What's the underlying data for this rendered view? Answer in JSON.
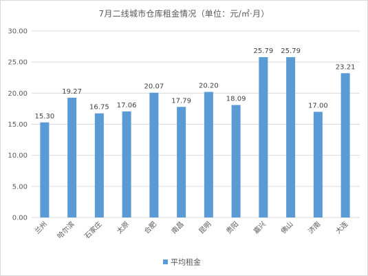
{
  "chart_data": {
    "type": "bar",
    "title": "7月二线城市仓库租金情况（单位：元/㎡·月）",
    "categories": [
      "兰州",
      "哈尔滨",
      "石家庄",
      "太原",
      "合肥",
      "南昌",
      "昆明",
      "贵阳",
      "嘉兴",
      "佛山",
      "济南",
      "大连"
    ],
    "series": [
      {
        "name": "平均租金",
        "values": [
          15.3,
          19.27,
          16.75,
          17.06,
          20.07,
          17.79,
          20.2,
          18.09,
          25.79,
          25.79,
          17.0,
          23.21
        ],
        "color": "#5b9bd5"
      }
    ],
    "ylim": [
      0,
      30
    ],
    "yticks": [
      0,
      5,
      10,
      15,
      20,
      25,
      30
    ],
    "ytick_labels": [
      "0.00",
      "5.00",
      "10.00",
      "15.00",
      "20.00",
      "25.00",
      "30.00"
    ],
    "data_labels": [
      "15.30",
      "19.27",
      "16.75",
      "17.06",
      "20.07",
      "17.79",
      "20.20",
      "18.09",
      "25.79",
      "25.79",
      "17.00",
      "23.21"
    ],
    "xlabel": "",
    "ylabel": "",
    "grid": true,
    "legend_position": "bottom",
    "gridline_color": "#d9d9d9"
  }
}
